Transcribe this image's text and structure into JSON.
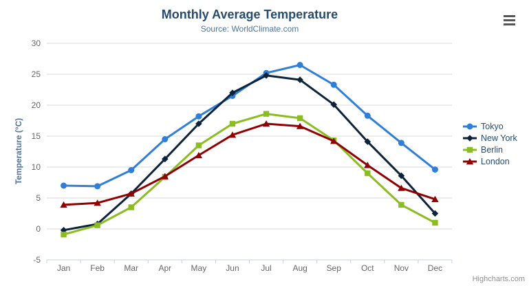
{
  "chart_data": {
    "type": "line",
    "title": "Monthly Average Temperature",
    "subtitle": "Source: WorldClimate.com",
    "categories": [
      "Jan",
      "Feb",
      "Mar",
      "Apr",
      "May",
      "Jun",
      "Jul",
      "Aug",
      "Sep",
      "Oct",
      "Nov",
      "Dec"
    ],
    "xlabel": "",
    "ylabel": "Temperature (°C)",
    "ylim": [
      -5,
      30
    ],
    "ytick_interval": 5,
    "grid": true,
    "legend_position": "right",
    "series": [
      {
        "name": "Tokyo",
        "color": "#2f7ed8",
        "marker": "circle",
        "values": [
          7.0,
          6.9,
          9.5,
          14.5,
          18.2,
          21.5,
          25.2,
          26.5,
          23.3,
          18.3,
          13.9,
          9.6
        ]
      },
      {
        "name": "New York",
        "color": "#0d233a",
        "marker": "diamond",
        "values": [
          -0.2,
          0.8,
          5.7,
          11.3,
          17.0,
          22.0,
          24.8,
          24.1,
          20.1,
          14.1,
          8.6,
          2.5
        ]
      },
      {
        "name": "Berlin",
        "color": "#8bbc21",
        "marker": "square",
        "values": [
          -0.9,
          0.6,
          3.5,
          8.4,
          13.5,
          17.0,
          18.6,
          17.9,
          14.3,
          9.0,
          3.9,
          1.0
        ]
      },
      {
        "name": "London",
        "color": "#910000",
        "marker": "triangle",
        "values": [
          3.9,
          4.2,
          5.7,
          8.5,
          11.9,
          15.2,
          17.0,
          16.6,
          14.2,
          10.3,
          6.6,
          4.8
        ]
      }
    ]
  },
  "credits": "Highcharts.com",
  "menu": {
    "icon": "hamburger-icon"
  },
  "colors": {
    "title": "#274b6d",
    "subtitle": "#4d759e",
    "axis_title": "#4d759e",
    "axis_labels": "#666666",
    "gridline": "#d8d8d8",
    "axis_line": "#c0d0e0",
    "legend_text": "#274b6d",
    "credits": "#909090",
    "menu": "#555555"
  }
}
